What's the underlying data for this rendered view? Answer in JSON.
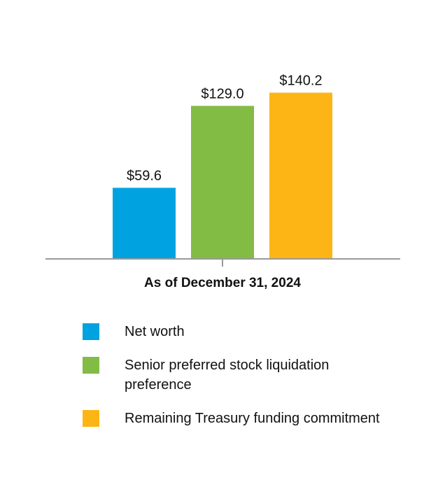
{
  "chart_data": {
    "type": "bar",
    "categories": [
      "As of December 31, 2024"
    ],
    "series": [
      {
        "name": "Net worth",
        "values": [
          59.6
        ],
        "label": "$59.6",
        "color": "#00A3E0"
      },
      {
        "name": "Senior preferred stock liquidation preference",
        "values": [
          129.0
        ],
        "label": "$129.0",
        "color": "#82BC45"
      },
      {
        "name": "Remaining Treasury funding commitment",
        "values": [
          140.2
        ],
        "label": "$140.2",
        "color": "#FDB515"
      }
    ],
    "title": "",
    "xlabel": "",
    "ylabel": "",
    "ylim": [
      0,
      160
    ],
    "grid": false,
    "axis_color": "#999999",
    "legend_position": "bottom-left"
  }
}
